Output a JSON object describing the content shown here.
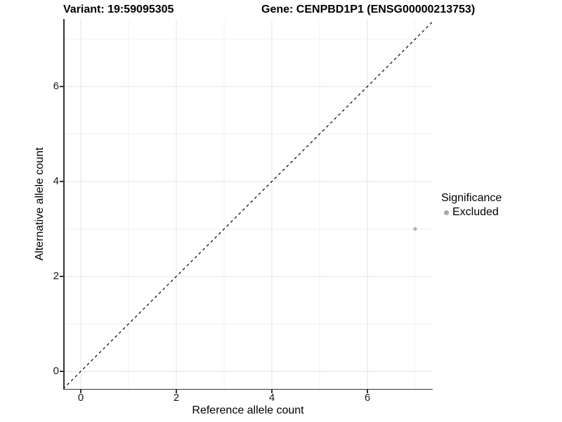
{
  "titles": {
    "variant": "Variant: 19:59095305",
    "gene": "Gene: CENPBD1P1 (ENSG00000213753)"
  },
  "chart_data": {
    "type": "scatter",
    "title": "Variant: 19:59095305   Gene: CENPBD1P1 (ENSG00000213753)",
    "xlabel": "Reference allele count",
    "ylabel": "Alternative allele count",
    "xlim": [
      -0.36,
      7.42
    ],
    "ylim": [
      -0.37,
      7.42
    ],
    "xticks": [
      0,
      2,
      4,
      6
    ],
    "yticks": [
      0,
      2,
      4,
      6
    ],
    "minor_gridlines": [
      1,
      3,
      5,
      7
    ],
    "grid": true,
    "points": [
      {
        "x": 7,
        "y": 3,
        "significance": "Excluded"
      }
    ],
    "identity_line": {
      "slope": 1,
      "intercept": 0,
      "style": "dashed",
      "color": "#000000"
    },
    "legend": {
      "title": "Significance",
      "position": "right",
      "entries": [
        {
          "label": "Excluded",
          "color": "#aaaaaa",
          "marker": "dot"
        }
      ]
    },
    "colors": {
      "point": "#b3b3b3",
      "axis_line": "#333333",
      "major_grid": "#e3e3e3",
      "minor_grid": "#f0f0f0"
    }
  }
}
